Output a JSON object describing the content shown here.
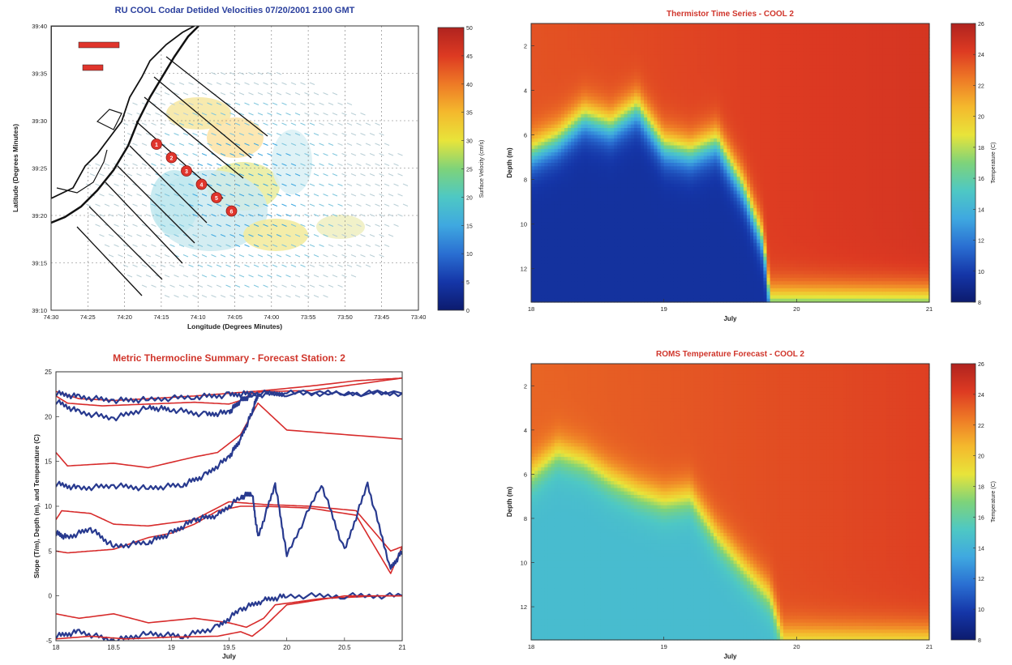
{
  "colors": {
    "blue_title": "#2a3f9d",
    "red_title": "#d0352b",
    "map_axes_text": "#222222",
    "line_red": "#d72b2b",
    "line_blue": "#283a8f",
    "marker_red": "#e0352c",
    "coast": "#111111"
  },
  "colormap_jet": [
    "#0c1b6e",
    "#1536a8",
    "#2a6fd2",
    "#3fa8e0",
    "#4ec8c4",
    "#7ed37a",
    "#e8e43a",
    "#f4b92d",
    "#ee7a26",
    "#dd3a22",
    "#b0231f"
  ],
  "chart_data": [
    {
      "type": "quiver-map",
      "title": "RU COOL Codar Detided Velocities 07/20/2001 2100 GMT",
      "xlabel": "Longitude (Degrees Minutes)",
      "ylabel": "Latitude (Degrees Minutes)",
      "x_ticks": [
        "74:30",
        "74:25",
        "74:20",
        "74:15",
        "74:10",
        "74:05",
        "74:00",
        "73:55",
        "73:50",
        "73:45",
        "73:40"
      ],
      "y_ticks": [
        "39:40",
        "39:35",
        "39:30",
        "39:25",
        "39:20",
        "39:15",
        "39:10"
      ],
      "station_markers": [
        "1",
        "2",
        "3",
        "4",
        "5",
        "6"
      ],
      "colorbar": {
        "label": "Surface Velocity (cm/s)",
        "ticks": [
          "50",
          "45",
          "40",
          "35",
          "30",
          "25",
          "20",
          "15",
          "10",
          "5",
          "0"
        ],
        "range": [
          0,
          50
        ]
      },
      "grid": true
    },
    {
      "type": "heatmap",
      "title": "Thermistor Time Series - COOL 2",
      "xlabel": "July",
      "ylabel": "Depth (m)",
      "x_ticks": [
        "18",
        "19",
        "20",
        "21"
      ],
      "y_ticks": [
        "2",
        "4",
        "6",
        "8",
        "10",
        "12"
      ],
      "xlim": [
        18,
        21
      ],
      "ylim": [
        13.5,
        1
      ],
      "colorbar": {
        "label": "Temperature (C)",
        "ticks": [
          "26",
          "24",
          "22",
          "20",
          "18",
          "16",
          "14",
          "12",
          "10",
          "8"
        ],
        "range": [
          8,
          26
        ]
      },
      "thermocline_depth": {
        "x": [
          18.0,
          18.2,
          18.4,
          18.6,
          18.8,
          19.0,
          19.2,
          19.4,
          19.6,
          19.75,
          19.8,
          21.0
        ],
        "y": [
          6.8,
          6.2,
          5.2,
          5.6,
          4.8,
          6.5,
          6.8,
          6.3,
          8.4,
          10.8,
          13.5,
          13.5
        ]
      },
      "surface_temp": 23.5,
      "bottom_temp": 9.5
    },
    {
      "type": "line",
      "title": "Metric Thermocline Summary - Forecast Station: 2",
      "xlabel": "July",
      "ylabel": "Slope (T/m), Depth (m), and Temperature (C)",
      "x_ticks": [
        "18",
        "18.5",
        "19",
        "19.5",
        "20",
        "20.5",
        "21"
      ],
      "y_ticks": [
        "25",
        "20",
        "15",
        "10",
        "5",
        "0",
        "-5"
      ],
      "xlim": [
        18,
        21
      ],
      "ylim": [
        -5,
        25
      ],
      "series": [
        {
          "color": "red",
          "x": [
            18,
            18.2,
            18.5,
            18.8,
            19.2,
            19.5,
            19.8,
            20.2,
            20.6,
            21
          ],
          "y": [
            22.8,
            22.0,
            21.8,
            22.0,
            22.3,
            22.6,
            22.9,
            23.4,
            24.0,
            24.3
          ]
        },
        {
          "color": "red",
          "x": [
            18,
            18.1,
            18.4,
            18.8,
            19.2,
            19.5,
            19.6,
            19.7,
            19.8,
            20.2,
            20.6,
            21
          ],
          "y": [
            22.3,
            21.5,
            21.2,
            21.4,
            21.6,
            21.4,
            21.8,
            22.6,
            22.8,
            22.9,
            23.6,
            24.3
          ]
        },
        {
          "color": "blue",
          "x": [
            18,
            18.2,
            18.5,
            18.8,
            19.2,
            19.5,
            19.7,
            20.0,
            20.5,
            21
          ],
          "y": [
            22.6,
            22.2,
            21.8,
            21.9,
            22.2,
            22.4,
            22.6,
            22.6,
            22.6,
            22.6
          ]
        },
        {
          "color": "blue",
          "x": [
            18,
            18.2,
            18.5,
            18.8,
            19.0,
            19.3,
            19.5,
            19.6,
            19.7,
            20.0,
            21
          ],
          "y": [
            21.7,
            20.5,
            19.8,
            21.0,
            20.8,
            20.2,
            20.5,
            21.8,
            22.4,
            22.6,
            22.6
          ]
        },
        {
          "color": "red",
          "x": [
            18,
            18.1,
            18.5,
            18.8,
            19.2,
            19.4,
            19.6,
            19.75,
            20.0,
            20.5,
            21
          ],
          "y": [
            16.0,
            14.5,
            14.8,
            14.3,
            15.5,
            16.0,
            18.0,
            21.5,
            18.5,
            18.0,
            17.5
          ]
        },
        {
          "color": "blue",
          "x": [
            18,
            18.2,
            18.5,
            18.8,
            19.1,
            19.3,
            19.5,
            19.6,
            19.7,
            19.75
          ],
          "y": [
            12.5,
            12.0,
            12.3,
            12.0,
            12.4,
            13.5,
            15.5,
            17.5,
            20.5,
            22.5
          ]
        },
        {
          "color": "red",
          "x": [
            18,
            18.05,
            18.3,
            18.5,
            18.8,
            19.2,
            19.5,
            19.8,
            20.2,
            20.6,
            20.9,
            21
          ],
          "y": [
            8.5,
            9.5,
            9.2,
            8.0,
            7.8,
            8.5,
            10.5,
            10.2,
            10.0,
            9.5,
            5.0,
            5.5
          ]
        },
        {
          "color": "red",
          "x": [
            18,
            18.1,
            18.3,
            18.5,
            18.8,
            19.0,
            19.2,
            19.4,
            19.6,
            19.8,
            20.2,
            20.6,
            20.9,
            21
          ],
          "y": [
            5.0,
            4.8,
            5.0,
            5.2,
            6.5,
            7.0,
            8.0,
            9.5,
            10.0,
            10.0,
            9.8,
            9.0,
            2.5,
            5.5
          ]
        },
        {
          "color": "blue",
          "x": [
            18,
            18.1,
            18.3,
            18.5,
            18.8,
            19.0,
            19.2,
            19.4,
            19.6,
            19.7,
            19.75,
            19.9,
            20.0,
            20.3,
            20.5,
            20.7,
            20.9,
            21
          ],
          "y": [
            7.0,
            6.5,
            7.5,
            5.5,
            6.0,
            7.0,
            8.5,
            9.0,
            11.0,
            11.5,
            6.5,
            12.5,
            4.5,
            12.5,
            5.0,
            12.5,
            3.0,
            5.0
          ]
        },
        {
          "color": "red",
          "x": [
            18,
            18.2,
            18.5,
            18.8,
            19.2,
            19.5,
            19.65,
            19.8,
            19.9,
            20.3,
            20.8,
            21
          ],
          "y": [
            -2.0,
            -2.5,
            -2.0,
            -3.0,
            -2.5,
            -3.0,
            -3.5,
            -2.5,
            -1.0,
            -0.3,
            0.0,
            0.0
          ]
        },
        {
          "color": "blue",
          "x": [
            18,
            18.2,
            18.5,
            18.8,
            19.1,
            19.4,
            19.6,
            19.8,
            20.0,
            20.5,
            21
          ],
          "y": [
            -4.5,
            -4.0,
            -5.0,
            -4.2,
            -4.5,
            -3.5,
            -1.5,
            -0.5,
            0.0,
            0.0,
            0.0
          ]
        },
        {
          "color": "red",
          "x": [
            18,
            18.3,
            18.6,
            19.0,
            19.4,
            19.6,
            19.7,
            19.8,
            20.0,
            20.5,
            21
          ],
          "y": [
            -4.8,
            -4.5,
            -4.8,
            -4.6,
            -4.5,
            -4.0,
            -4.5,
            -3.5,
            -1.0,
            0.0,
            0.0
          ]
        }
      ]
    },
    {
      "type": "heatmap",
      "title": "ROMS Temperature Forecast - COOL 2",
      "xlabel": "July",
      "ylabel": "Depth (m)",
      "x_ticks": [
        "18",
        "19",
        "20",
        "21"
      ],
      "y_ticks": [
        "2",
        "4",
        "6",
        "8",
        "10",
        "12"
      ],
      "xlim": [
        18,
        21
      ],
      "ylim": [
        13.5,
        1
      ],
      "colorbar": {
        "label": "Temperature (C)",
        "ticks": [
          "26",
          "24",
          "22",
          "20",
          "18",
          "16",
          "14",
          "12",
          "10",
          "8"
        ],
        "range": [
          8,
          26
        ]
      },
      "thermocline_depth": {
        "x": [
          18.0,
          18.2,
          18.4,
          18.6,
          18.8,
          19.0,
          19.2,
          19.4,
          19.6,
          19.8,
          19.9,
          20.1,
          20.4,
          21.0
        ],
        "y": [
          6.0,
          5.0,
          5.4,
          6.2,
          6.8,
          7.2,
          7.0,
          8.8,
          10.2,
          11.5,
          13.5,
          13.5,
          13.5,
          13.5
        ]
      },
      "surface_temp": 23.0,
      "bottom_temp": 14.5
    }
  ]
}
